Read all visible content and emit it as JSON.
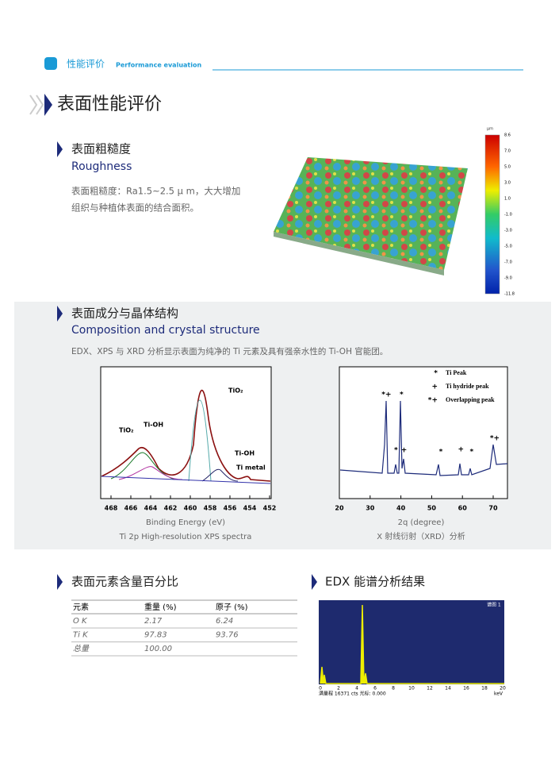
{
  "header": {
    "title_cn": "性能评价",
    "title_en": "Performance evaluation"
  },
  "section_title": "表面性能评价",
  "roughness": {
    "title_cn": "表面粗糙度",
    "title_en": "Roughness",
    "text": [
      "表面粗糙度：Ra1.5~2.5 μ m，大大增加",
      "组织与种植体表面的结合面积。"
    ],
    "colorbar": {
      "unit": "μm",
      "ticks": [
        "8.6",
        "7.0",
        "5.0",
        "3.0",
        "1.0",
        "-1.0",
        "-3.0",
        "-5.0",
        "-7.0",
        "-9.0",
        "-11.8"
      ]
    }
  },
  "composition": {
    "title_cn": "表面成分与晶体结构",
    "title_en": "Composition and crystal structure",
    "text": "EDX、XPS 与 XRD 分析显示表面为纯净的 Ti 元素及具有强亲水性的 Ti-OH 官能团。",
    "xps": {
      "xticks": [
        "468",
        "466",
        "464",
        "462",
        "460",
        "458",
        "456",
        "454",
        "452"
      ],
      "xlabel": "Binding Energy (eV)",
      "caption": "Ti 2p High-resolution XPS spectra",
      "annotations": [
        "TiO₂",
        "Ti-OH",
        "TiO₂",
        "Ti-OH",
        "Ti metal"
      ]
    },
    "xrd": {
      "xticks": [
        "20",
        "30",
        "40",
        "50",
        "60",
        "70"
      ],
      "xlabel": "2q (degree)",
      "caption": "X 射线衍射（XRD）分析",
      "legend": [
        {
          "symbol": "*",
          "label": "Ti Peak"
        },
        {
          "symbol": "+",
          "label": "Ti hydride peak"
        },
        {
          "symbol": "*+",
          "label": "Overlapping peak"
        }
      ],
      "markers": [
        {
          "symbol": "*+",
          "x": 35.3
        },
        {
          "symbol": "*",
          "x": 40.2
        },
        {
          "symbol": "*",
          "x": 38.4
        },
        {
          "symbol": "+",
          "x": 41
        },
        {
          "symbol": "*",
          "x": 53
        },
        {
          "symbol": "+",
          "x": 59.5
        },
        {
          "symbol": "*",
          "x": 63
        },
        {
          "symbol": "*+",
          "x": 70.5
        }
      ]
    }
  },
  "element_table": {
    "title": "表面元素含量百分比",
    "columns": [
      "元素",
      "重量 (%)",
      "原子 (%)"
    ],
    "rows": [
      [
        "O K",
        "2.17",
        "6.24"
      ],
      [
        "Ti K",
        "97.83",
        "93.76"
      ],
      [
        "总量",
        "100.00"
      ]
    ]
  },
  "edx": {
    "title": "EDX 能谱分析结果",
    "label": "谱图 1",
    "xticks": [
      "0",
      "2",
      "4",
      "6",
      "8",
      "10",
      "12",
      "14",
      "16",
      "18",
      "20"
    ],
    "footer": "满量程 16371 cts 光标: 0.000",
    "unit": "keV"
  }
}
